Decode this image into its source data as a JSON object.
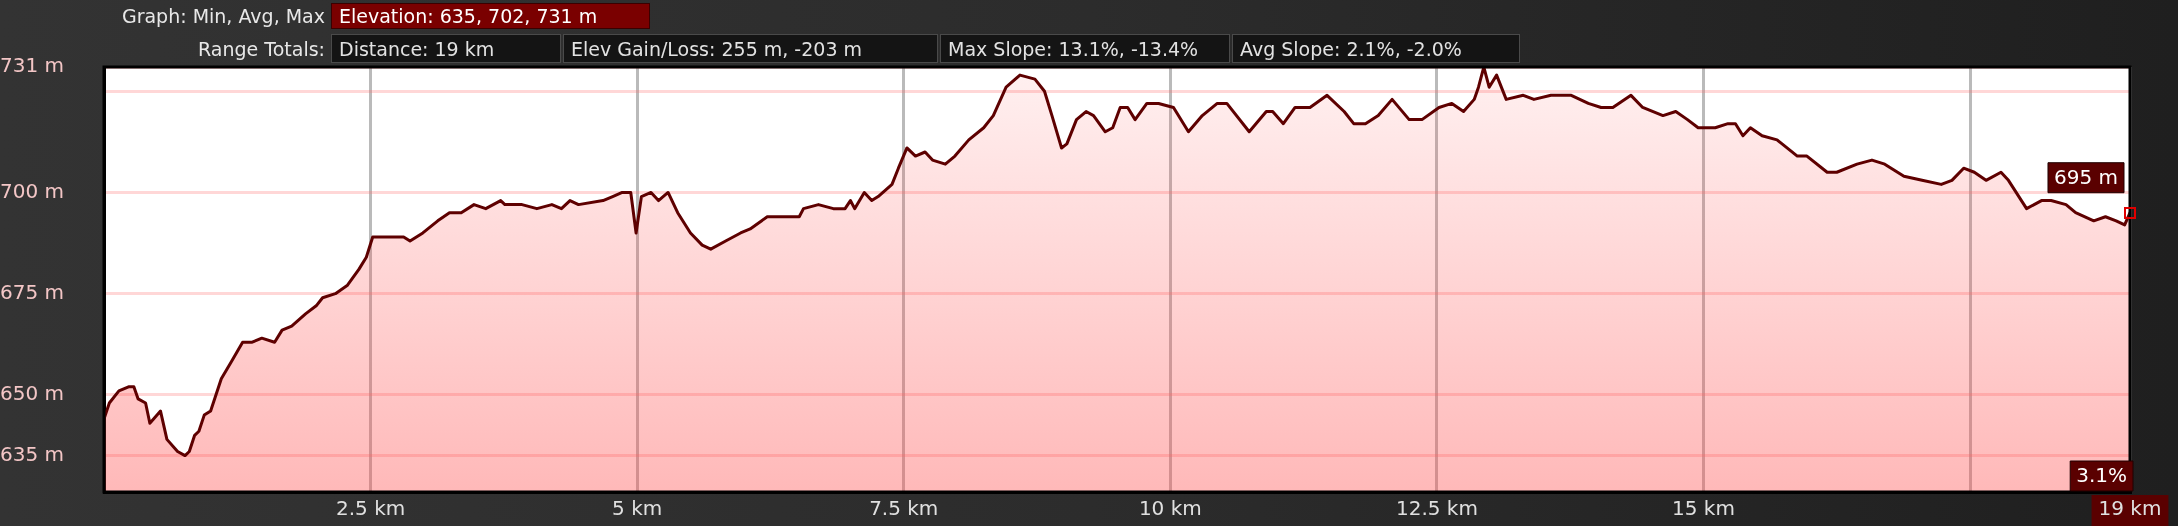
{
  "chart_data": {
    "type": "area",
    "annotations": [
      "Graph: Min, Avg, Max",
      "Elevation: 635, 702, 731 m",
      "Range Totals:",
      "Distance: 19 km",
      "Elev Gain/Loss: 255 m, -203 m",
      "Max Slope: 13.1%, -13.4%",
      "Avg Slope: 2.1%, -2.0%",
      {
        "text": "695 m",
        "x": 19,
        "y": 695
      },
      {
        "text": "3.1%",
        "x": 19
      }
    ],
    "x": [
      0,
      0.05,
      0.14,
      0.23,
      0.28,
      0.32,
      0.39,
      0.43,
      0.53,
      0.59,
      0.69,
      0.76,
      0.8,
      0.85,
      0.89,
      0.94,
      1,
      1.1,
      1.19,
      1.3,
      1.39,
      1.48,
      1.6,
      1.67,
      1.76,
      1.89,
      1.99,
      2.05,
      2.17,
      2.28,
      2.39,
      2.46,
      2.52,
      2.62,
      2.81,
      2.87,
      2.99,
      3.13,
      3.24,
      3.35,
      3.47,
      3.58,
      3.72,
      3.76,
      3.92,
      4.06,
      4.2,
      4.29,
      4.37,
      4.45,
      4.68,
      4.77,
      4.86,
      4.94,
      4.99,
      5.04,
      5.13,
      5.2,
      5.29,
      5.38,
      5.5,
      5.61,
      5.69,
      5.83,
      5.97,
      6.06,
      6.22,
      6.38,
      6.52,
      6.56,
      6.7,
      6.84,
      6.95,
      7,
      7.04,
      7.13,
      7.2,
      7.26,
      7.39,
      7.45,
      7.53,
      7.61,
      7.7,
      7.77,
      7.89,
      7.98,
      8.11,
      8.25,
      8.34,
      8.46,
      8.59,
      8.73,
      8.82,
      8.89,
      8.98,
      9.03,
      9.12,
      9.21,
      9.28,
      9.39,
      9.46,
      9.53,
      9.6,
      9.67,
      9.78,
      9.89,
      10.03,
      10.17,
      10.3,
      10.44,
      10.53,
      10.74,
      10.9,
      10.96,
      11.06,
      11.17,
      11.31,
      11.47,
      11.63,
      11.72,
      11.83,
      11.95,
      12.08,
      12.24,
      12.36,
      12.52,
      12.64,
      12.75,
      12.85,
      12.89,
      12.94,
      12.99,
      13.06,
      13.15,
      13.31,
      13.41,
      13.57,
      13.76,
      13.92,
      14.04,
      14.15,
      14.32,
      14.43,
      14.62,
      14.74,
      14.85,
      14.95,
      15.11,
      15.23,
      15.3,
      15.37,
      15.44,
      15.55,
      15.69,
      15.88,
      15.97,
      16.16,
      16.25,
      16.44,
      16.58,
      16.7,
      16.88,
      17.05,
      17.23,
      17.33,
      17.44,
      17.54,
      17.65,
      17.79,
      17.86,
      18.03,
      18.17,
      18.26,
      18.4,
      18.49,
      18.66,
      18.77,
      18.87,
      18.95,
      19
    ],
    "values": [
      644,
      648,
      651,
      652,
      652,
      649,
      648,
      643,
      646,
      639,
      636,
      635,
      636,
      640,
      641,
      645,
      646,
      654,
      658,
      663,
      663,
      664,
      663,
      666,
      667,
      670,
      672,
      674,
      675,
      677,
      681,
      684,
      689,
      689,
      689,
      688,
      690,
      693,
      695,
      695,
      697,
      696,
      698,
      697,
      697,
      696,
      697,
      696,
      698,
      697,
      698,
      699,
      700,
      700,
      690,
      699,
      700,
      698,
      700,
      695,
      690,
      687,
      686,
      688,
      690,
      691,
      694,
      694,
      694,
      696,
      697,
      696,
      696,
      698,
      696,
      700,
      698,
      699,
      702,
      706,
      711,
      709,
      710,
      708,
      707,
      709,
      713,
      716,
      719,
      726,
      729,
      728,
      725,
      719,
      711,
      712,
      718,
      720,
      719,
      715,
      716,
      721,
      721,
      718,
      722,
      722,
      721,
      715,
      719,
      722,
      722,
      715,
      720,
      720,
      717,
      721,
      721,
      724,
      720,
      717,
      717,
      719,
      723,
      718,
      718,
      721,
      722,
      720,
      723,
      726,
      731,
      726,
      729,
      723,
      724,
      723,
      724,
      724,
      722,
      721,
      721,
      724,
      721,
      719,
      720,
      718,
      716,
      716,
      717,
      717,
      714,
      716,
      714,
      713,
      709,
      709,
      705,
      705,
      707,
      708,
      707,
      704,
      703,
      702,
      703,
      706,
      705,
      703,
      705,
      703,
      696,
      698,
      698,
      697,
      695,
      693,
      694,
      693,
      692,
      695
    ],
    "color": "#5e0000",
    "xlim": [
      0,
      19
    ],
    "ylim": [
      626,
      731
    ],
    "xticks": [
      {
        "value": 2.5,
        "label": "2.5 km"
      },
      {
        "value": 5,
        "label": "5 km"
      },
      {
        "value": 7.5,
        "label": "7.5 km"
      },
      {
        "value": 10,
        "label": "10 km"
      },
      {
        "value": 12.5,
        "label": "12.5 km"
      },
      {
        "value": 15,
        "label": "15 km"
      },
      {
        "value": 17.5,
        "label": null
      },
      {
        "value": 19,
        "label": "19 km"
      }
    ],
    "yticks": [
      {
        "value": 635,
        "label": "635 m"
      },
      {
        "value": 650,
        "label": "650 m"
      },
      {
        "value": 675,
        "label": "675 m"
      },
      {
        "value": 700,
        "label": "700 m"
      },
      {
        "value": 725,
        "label": null
      },
      {
        "value": 731,
        "label": "731 m"
      }
    ],
    "grid": true
  }
}
